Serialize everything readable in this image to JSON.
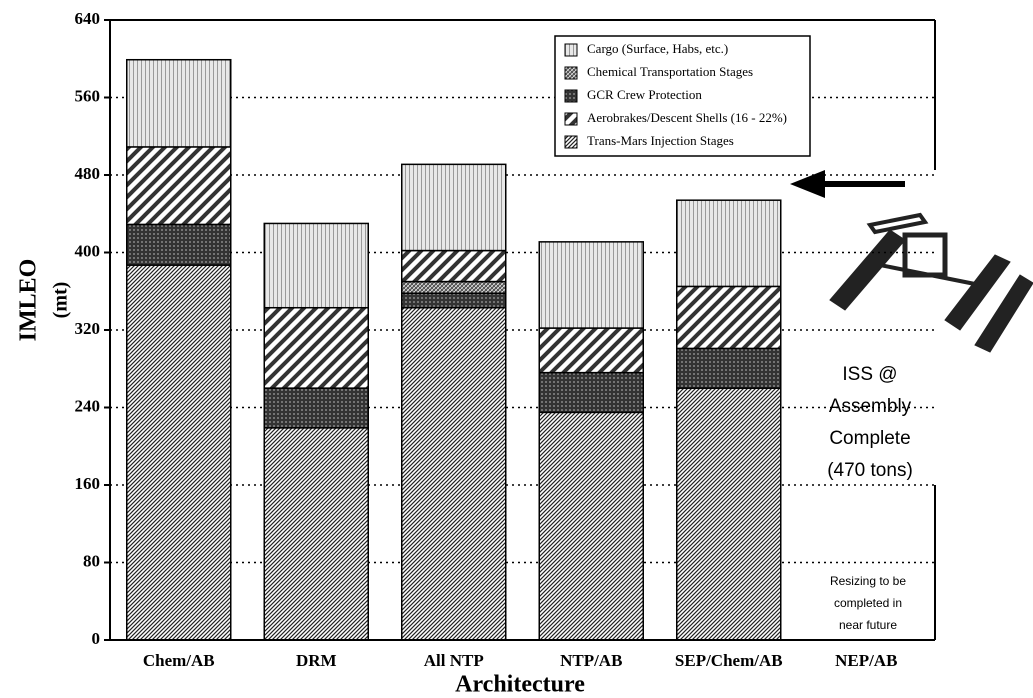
{
  "chart_data": {
    "type": "stacked_bar",
    "y_label": [
      "IMLEO",
      "(mt)"
    ],
    "x_label": "Architecture",
    "categories": [
      "Chem/AB",
      "DRM",
      "All NTP",
      "NTP/AB",
      "SEP/Chem/AB",
      "NEP/AB"
    ],
    "series": [
      {
        "name": "Cargo (Surface, Habs, etc.)",
        "color": "#9a9a9a",
        "values": [
          90,
          87,
          89,
          89,
          89,
          null
        ]
      },
      {
        "name": "Chemical Transportation Stages",
        "color": "#555555",
        "values": [
          0,
          0,
          12,
          0,
          0,
          null
        ]
      },
      {
        "name": "GCR Crew Protection",
        "color": "#111111",
        "values": [
          42,
          41,
          15,
          41,
          41,
          null
        ]
      },
      {
        "name": "Aerobrakes/Descent Shells (16 - 22%)",
        "color": "#333333",
        "values": [
          80,
          83,
          32,
          46,
          64,
          null
        ]
      },
      {
        "name": "Trans-Mars Injection Stages",
        "color": "#222222",
        "values": [
          387,
          219,
          343,
          235,
          260,
          null
        ]
      }
    ],
    "stack_order": [
      4,
      2,
      1,
      3,
      0
    ],
    "ylim": [
      0,
      640
    ],
    "yticks": [
      0,
      80,
      160,
      240,
      320,
      400,
      480,
      560,
      640
    ],
    "grid": true,
    "annotations": [
      "ISS @",
      "Assembly",
      "Complete",
      "(470 tons)",
      "Resizing to be",
      "completed in",
      "near future"
    ]
  }
}
